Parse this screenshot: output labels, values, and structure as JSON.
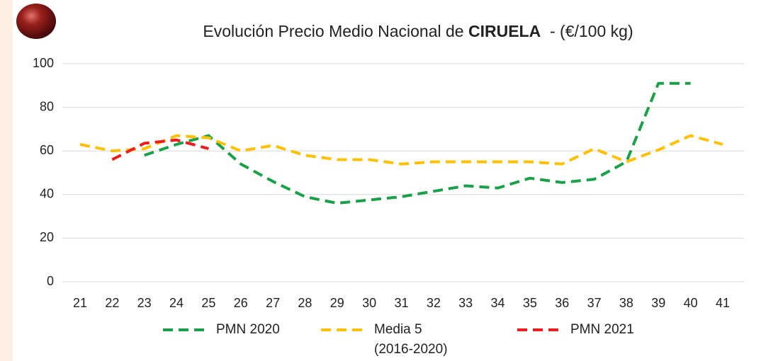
{
  "chart_data": {
    "type": "line",
    "title_start": "Evolución Precio Medio Nacional de ",
    "title_bold": "CIRUELA",
    "title_end": "  - (€/100 kg)",
    "categories": [
      "21",
      "22",
      "23",
      "24",
      "25",
      "26",
      "27",
      "28",
      "29",
      "30",
      "31",
      "32",
      "33",
      "34",
      "35",
      "36",
      "37",
      "38",
      "39",
      "40",
      "41"
    ],
    "ylim": [
      0,
      100
    ],
    "yticks": [
      0,
      20,
      40,
      60,
      80,
      100
    ],
    "grid": true,
    "series": [
      {
        "name": "PMN 2020",
        "color": "#1aa048",
        "values": [
          null,
          null,
          58,
          63,
          67,
          54,
          46,
          39,
          36,
          37.5,
          39,
          41.5,
          44,
          43,
          47.5,
          45.5,
          47,
          55,
          91,
          91,
          null
        ]
      },
      {
        "name": "Media 5 (2016-2020)",
        "color": "#ffc000",
        "values": [
          63,
          60,
          61,
          67,
          66,
          60,
          62.5,
          58,
          56,
          56,
          54,
          55,
          55,
          55,
          55,
          54,
          61,
          55,
          60.5,
          67,
          63
        ]
      },
      {
        "name": "PMN 2021",
        "color": "#ee1c1c",
        "values": [
          null,
          56,
          63.5,
          65,
          61,
          null,
          null,
          null,
          null,
          null,
          null,
          null,
          null,
          null,
          null,
          null,
          null,
          null,
          null,
          null,
          null
        ]
      }
    ]
  }
}
